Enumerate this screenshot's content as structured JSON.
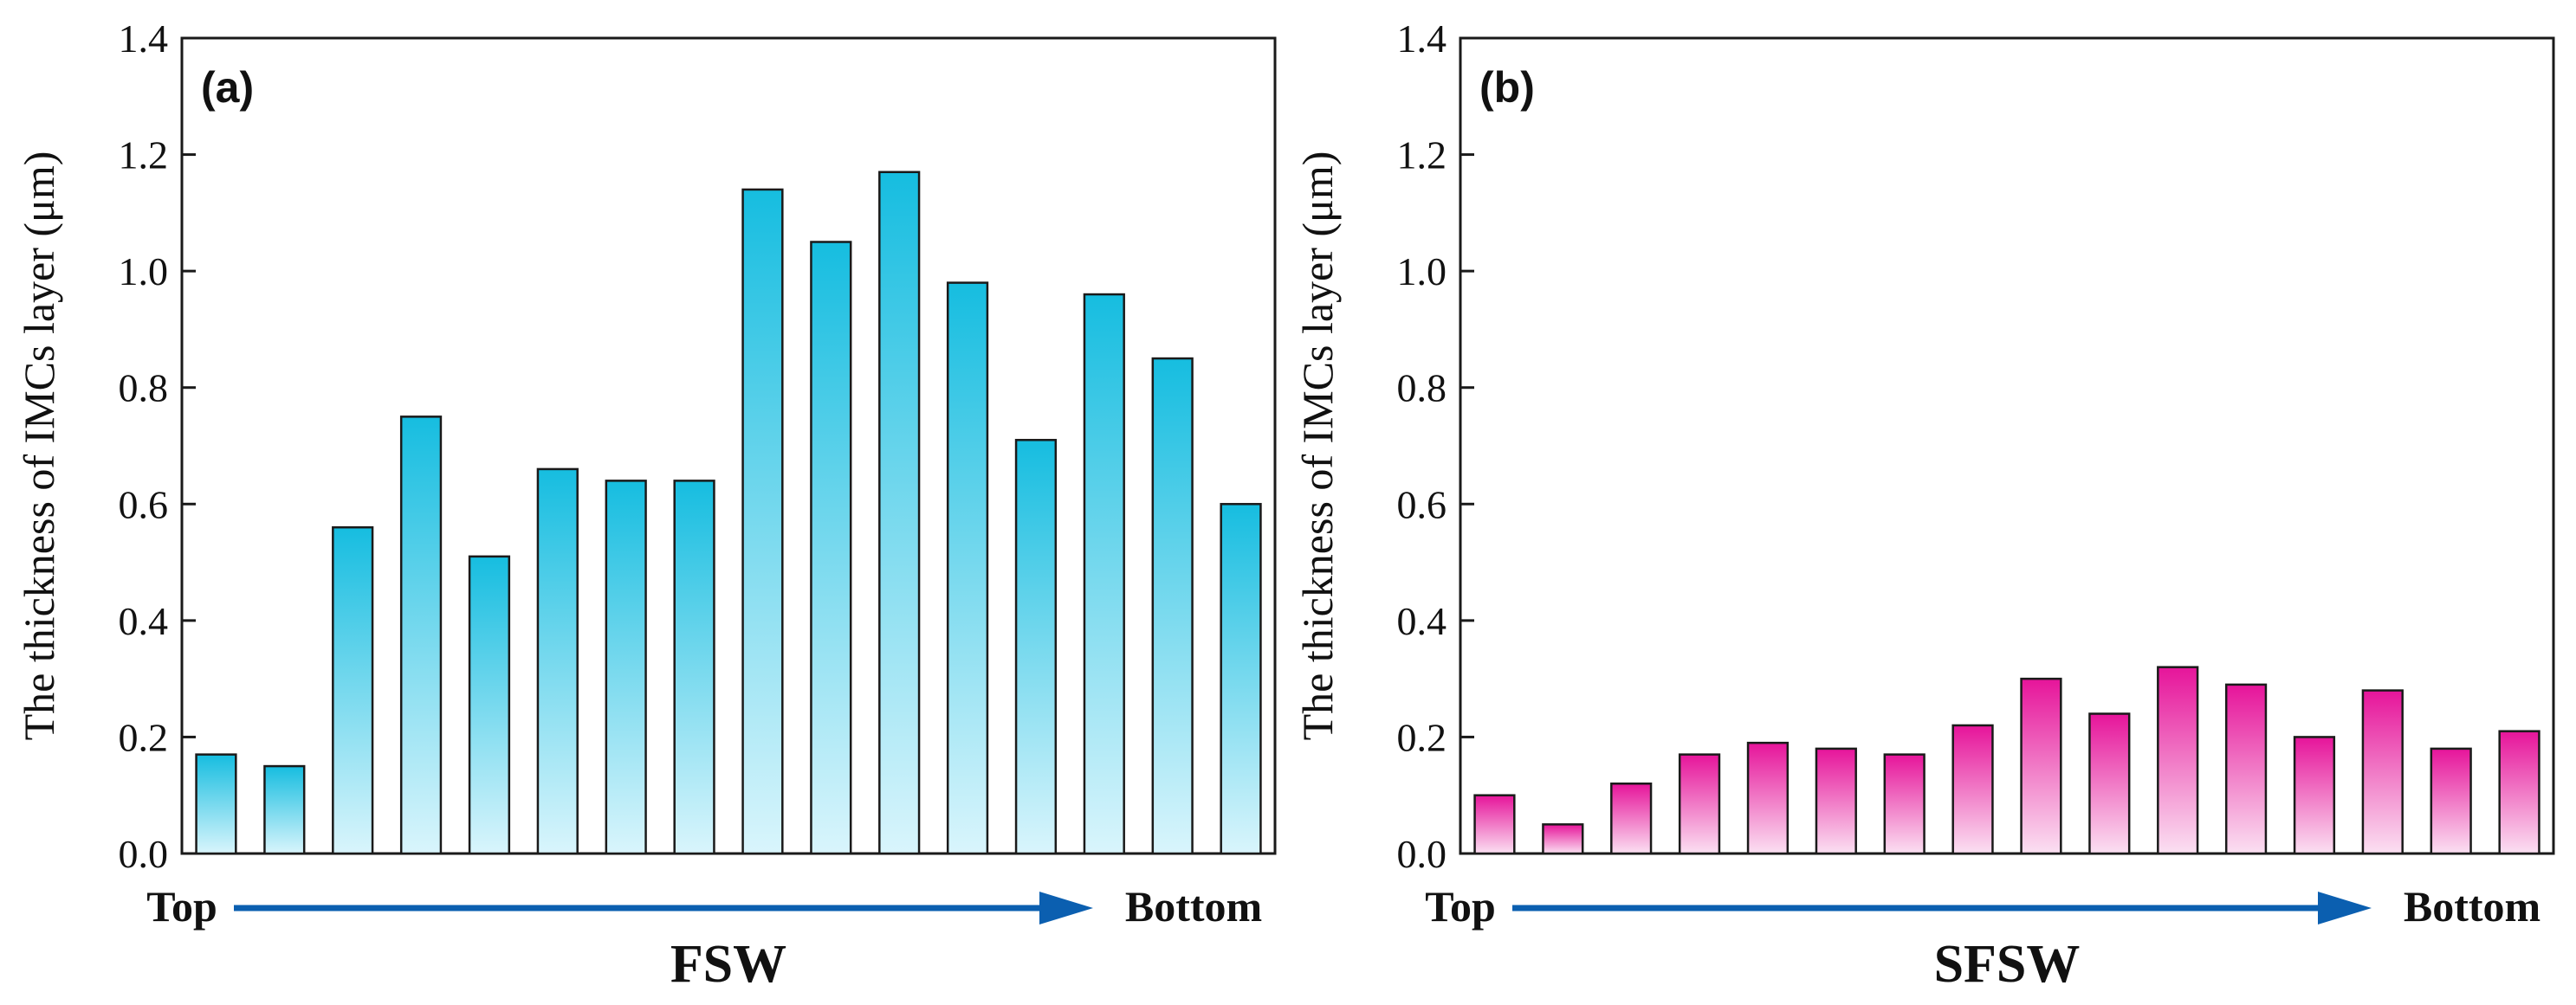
{
  "chart_data": [
    {
      "type": "bar",
      "panel_label": "(a)",
      "title": "",
      "xlabel": "FSW",
      "ylabel": "The thickness of IMCs layer (μm)",
      "ylim": [
        0.0,
        1.4
      ],
      "yticks": [
        0.0,
        0.2,
        0.4,
        0.6,
        0.8,
        1.0,
        1.2,
        1.4
      ],
      "ytick_labels": [
        "0.0",
        "0.2",
        "0.4",
        "0.6",
        "0.8",
        "1.0",
        "1.2",
        "1.4"
      ],
      "x_start_label": "Top",
      "x_end_label": "Bottom",
      "values": [
        0.17,
        0.15,
        0.56,
        0.75,
        0.51,
        0.66,
        0.64,
        0.64,
        1.14,
        1.05,
        1.17,
        0.98,
        0.71,
        0.96,
        0.85,
        0.6
      ],
      "colors": {
        "bar_top": "#16bde0",
        "bar_bottom": "#d9f5fc",
        "edge": "#1a1a1a",
        "arrow": "#0b5fb0"
      },
      "grid": false
    },
    {
      "type": "bar",
      "panel_label": "(b)",
      "title": "",
      "xlabel": "SFSW",
      "ylabel": "The thickness of IMCs layer (μm)",
      "ylim": [
        0.0,
        1.4
      ],
      "yticks": [
        0.0,
        0.2,
        0.4,
        0.6,
        0.8,
        1.0,
        1.2,
        1.4
      ],
      "ytick_labels": [
        "0.0",
        "0.2",
        "0.4",
        "0.6",
        "0.8",
        "1.0",
        "1.2",
        "1.4"
      ],
      "x_start_label": "Top",
      "x_end_label": "Bottom",
      "values": [
        0.1,
        0.05,
        0.12,
        0.17,
        0.19,
        0.18,
        0.17,
        0.22,
        0.3,
        0.24,
        0.32,
        0.29,
        0.2,
        0.28,
        0.18,
        0.21
      ],
      "colors": {
        "bar_top": "#e6149a",
        "bar_bottom": "#fbe0f2",
        "edge": "#1a1a1a",
        "arrow": "#0b5fb0"
      },
      "grid": false
    }
  ]
}
